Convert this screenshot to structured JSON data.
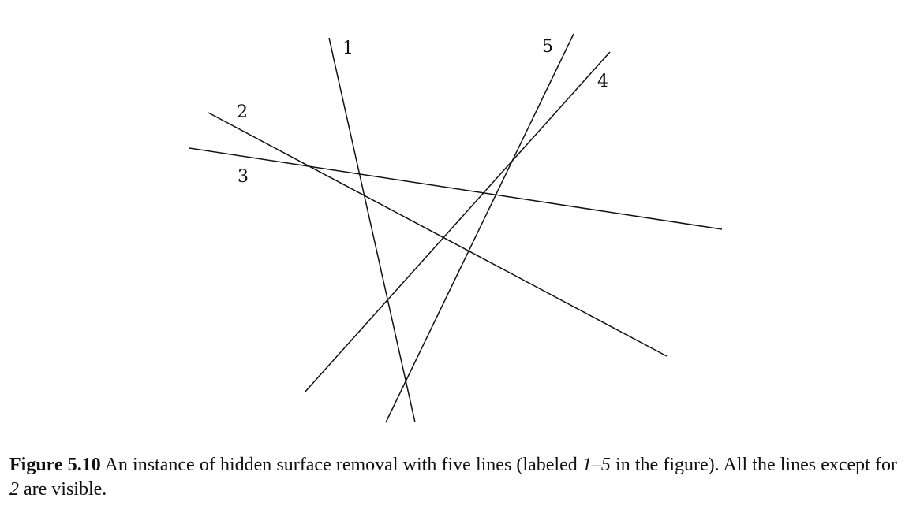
{
  "figure": {
    "lines": [
      {
        "id": "1",
        "label": "1"
      },
      {
        "id": "2",
        "label": "2"
      },
      {
        "id": "3",
        "label": "3"
      },
      {
        "id": "4",
        "label": "4"
      },
      {
        "id": "5",
        "label": "5"
      }
    ]
  },
  "caption": {
    "label": "Figure 5.10",
    "text_part1": "An instance of hidden surface removal with five lines (labeled ",
    "range": "1–5",
    "text_part2": " in the figure). All the lines except for ",
    "hidden_line": "2",
    "text_part3": " are visible."
  }
}
